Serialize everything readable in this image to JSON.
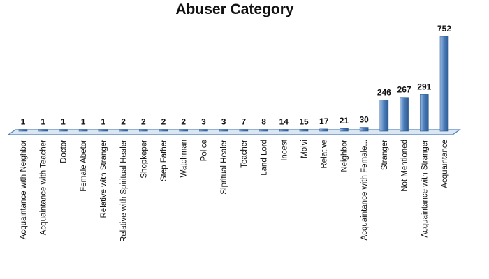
{
  "chart_data": {
    "type": "bar",
    "title": "Abuser Category",
    "categories": [
      "Acquaintance with Neighbor",
      "Acquaintance with Teacher",
      "Doctor",
      "Female Abetor",
      "Relative with Stranger",
      "Relative with Spiritual Healer",
      "Shopkeper",
      "Step Father",
      "Watchman",
      "Police",
      "Sipritual Healer",
      "Teacher",
      "Land Lord",
      "Incest",
      "Molvi",
      "Relative",
      "Neighbor",
      "Acquaintance with Female...",
      "Stranger",
      "Not Mentioned",
      "Acquaintance with Stranger",
      "Acquaintance"
    ],
    "values": [
      1,
      1,
      1,
      1,
      1,
      2,
      2,
      2,
      2,
      3,
      3,
      7,
      8,
      14,
      15,
      17,
      21,
      30,
      246,
      267,
      291,
      752
    ],
    "color": "#4f81bd"
  }
}
